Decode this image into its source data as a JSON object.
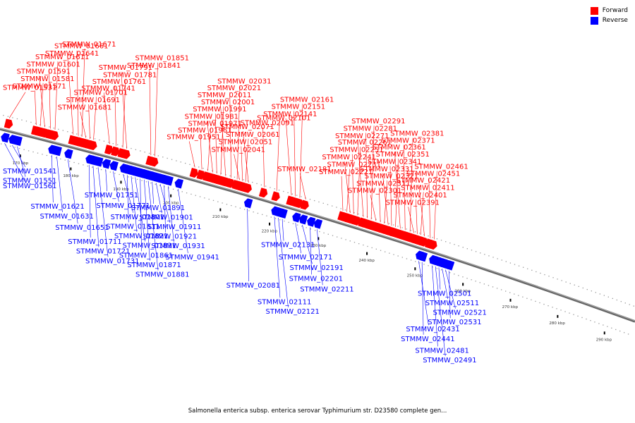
{
  "title": "Salmonella enterica subsp. enterica serovar Typhimurium str. D23580 complete gen...",
  "legend": [
    {
      "label": "Forward",
      "color": "#ff0000"
    },
    {
      "label": "Reverse",
      "color": "#0000ff"
    }
  ],
  "backbone": {
    "start_kbp": 165,
    "end_kbp": 295
  },
  "scale_ticks": [
    {
      "kbp": 170,
      "label": "170 kbp"
    },
    {
      "kbp": 180,
      "label": "180 kbp"
    },
    {
      "kbp": 190,
      "label": "190 kbp"
    },
    {
      "kbp": 200,
      "label": "200 kbp"
    },
    {
      "kbp": 210,
      "label": "210 kbp"
    },
    {
      "kbp": 220,
      "label": "220 kbp"
    },
    {
      "kbp": 230,
      "label": "230 kbp"
    },
    {
      "kbp": 240,
      "label": "240 kbp"
    },
    {
      "kbp": 250,
      "label": "250 kbp"
    },
    {
      "kbp": 260,
      "label": "260 kbp"
    },
    {
      "kbp": 270,
      "label": "270 kbp"
    },
    {
      "kbp": 280,
      "label": "280 kbp"
    },
    {
      "kbp": 290,
      "label": "290 kbp"
    }
  ],
  "forward_genes": [
    {
      "id": "STMMW_01531",
      "kbp": 166.2
    },
    {
      "id": "STMMW_01571",
      "kbp": 171.5
    },
    {
      "id": "STMMW_01581",
      "kbp": 172.3
    },
    {
      "id": "STMMW_01591",
      "kbp": 173.2
    },
    {
      "id": "STMMW_01601",
      "kbp": 174.3
    },
    {
      "id": "STMMW_01611",
      "kbp": 175.2
    },
    {
      "id": "STMMW_01641",
      "kbp": 178.8
    },
    {
      "id": "STMMW_01661",
      "kbp": 179.8
    },
    {
      "id": "STMMW_01671",
      "kbp": 180.5
    },
    {
      "id": "STMMW_01681",
      "kbp": 181.3
    },
    {
      "id": "STMMW_01691",
      "kbp": 182.1
    },
    {
      "id": "STMMW_01701",
      "kbp": 182.8
    },
    {
      "id": "STMMW_01741",
      "kbp": 186.0
    },
    {
      "id": "STMMW_01761",
      "kbp": 187.3
    },
    {
      "id": "STMMW_01781",
      "kbp": 188.6
    },
    {
      "id": "STMMW_01791",
      "kbp": 189.4
    },
    {
      "id": "STMMW_01841",
      "kbp": 194.2
    },
    {
      "id": "STMMW_01851",
      "kbp": 195.0
    },
    {
      "id": "STMMW_01951",
      "kbp": 203.0
    },
    {
      "id": "STMMW_01961",
      "kbp": 204.4
    },
    {
      "id": "STMMW_01971",
      "kbp": 205.6
    },
    {
      "id": "STMMW_01981",
      "kbp": 206.6
    },
    {
      "id": "STMMW_01991",
      "kbp": 207.4
    },
    {
      "id": "STMMW_02001",
      "kbp": 208.2
    },
    {
      "id": "STMMW_02011",
      "kbp": 209.2
    },
    {
      "id": "STMMW_02021",
      "kbp": 210.3
    },
    {
      "id": "STMMW_02031",
      "kbp": 211.5
    },
    {
      "id": "STMMW_02041",
      "kbp": 212.0
    },
    {
      "id": "STMMW_02051",
      "kbp": 212.6
    },
    {
      "id": "STMMW_02061",
      "kbp": 213.2
    },
    {
      "id": "STMMW_02071",
      "kbp": 213.8
    },
    {
      "id": "STMMW_02091",
      "kbp": 217.0
    },
    {
      "id": "STMMW_02101",
      "kbp": 219.5
    },
    {
      "id": "STMMW_02141",
      "kbp": 222.5
    },
    {
      "id": "STMMW_02151",
      "kbp": 223.3
    },
    {
      "id": "STMMW_02161",
      "kbp": 224.2
    },
    {
      "id": "STMMW_02181",
      "kbp": 225.4
    },
    {
      "id": "STMMW_02221",
      "kbp": 233.0
    },
    {
      "id": "STMMW_02231",
      "kbp": 233.8
    },
    {
      "id": "STMMW_02241",
      "kbp": 234.5
    },
    {
      "id": "STMMW_02251",
      "kbp": 235.2
    },
    {
      "id": "STMMW_02261",
      "kbp": 236.0
    },
    {
      "id": "STMMW_02271",
      "kbp": 237.2
    },
    {
      "id": "STMMW_02281",
      "kbp": 238.0
    },
    {
      "id": "STMMW_02291",
      "kbp": 238.8
    },
    {
      "id": "STMMW_02301",
      "kbp": 239.8
    },
    {
      "id": "STMMW_02311",
      "kbp": 240.7
    },
    {
      "id": "STMMW_02321",
      "kbp": 241.5
    },
    {
      "id": "STMMW_02331",
      "kbp": 242.3
    },
    {
      "id": "STMMW_02341",
      "kbp": 243.0
    },
    {
      "id": "STMMW_02351",
      "kbp": 243.8
    },
    {
      "id": "STMMW_02361",
      "kbp": 244.8
    },
    {
      "id": "STMMW_02371",
      "kbp": 245.8
    },
    {
      "id": "STMMW_02381",
      "kbp": 246.8
    },
    {
      "id": "STMMW_02391",
      "kbp": 247.6
    },
    {
      "id": "STMMW_02401",
      "kbp": 248.3
    },
    {
      "id": "STMMW_02411",
      "kbp": 249.0
    },
    {
      "id": "STMMW_02421",
      "kbp": 249.8
    },
    {
      "id": "STMMW_02451",
      "kbp": 251.0
    },
    {
      "id": "STMMW_02461",
      "kbp": 251.8
    }
  ],
  "reverse_genes": [
    {
      "id": "STMMW_01541",
      "kbp": 168.0
    },
    {
      "id": "STMMW_01551",
      "kbp": 169.0
    },
    {
      "id": "STMMW_01561",
      "kbp": 166.5
    },
    {
      "id": "STMMW_01621",
      "kbp": 175.8
    },
    {
      "id": "STMMW_01631",
      "kbp": 176.8
    },
    {
      "id": "STMMW_01651",
      "kbp": 179.0
    },
    {
      "id": "STMMW_01711",
      "kbp": 183.2
    },
    {
      "id": "STMMW_01721",
      "kbp": 184.0
    },
    {
      "id": "STMMW_01731",
      "kbp": 185.0
    },
    {
      "id": "STMMW_01751",
      "kbp": 186.5
    },
    {
      "id": "STMMW_01771",
      "kbp": 188.0
    },
    {
      "id": "STMMW_01801",
      "kbp": 190.0
    },
    {
      "id": "STMMW_01811",
      "kbp": 190.8
    },
    {
      "id": "STMMW_01821",
      "kbp": 191.6
    },
    {
      "id": "STMMW_01831",
      "kbp": 192.4
    },
    {
      "id": "STMMW_01861",
      "kbp": 193.4
    },
    {
      "id": "STMMW_01871",
      "kbp": 194.2
    },
    {
      "id": "STMMW_01881",
      "kbp": 195.0
    },
    {
      "id": "STMMW_01891",
      "kbp": 195.8
    },
    {
      "id": "STMMW_01901",
      "kbp": 196.6
    },
    {
      "id": "STMMW_01911",
      "kbp": 197.4
    },
    {
      "id": "STMMW_01921",
      "kbp": 198.2
    },
    {
      "id": "STMMW_01931",
      "kbp": 199.0
    },
    {
      "id": "STMMW_01941",
      "kbp": 201.0
    },
    {
      "id": "STMMW_02081",
      "kbp": 215.0
    },
    {
      "id": "STMMW_02111",
      "kbp": 220.5
    },
    {
      "id": "STMMW_02121",
      "kbp": 221.3
    },
    {
      "id": "STMMW_02131",
      "kbp": 222.1
    },
    {
      "id": "STMMW_02171",
      "kbp": 224.8
    },
    {
      "id": "STMMW_02191",
      "kbp": 226.2
    },
    {
      "id": "STMMW_02201",
      "kbp": 227.8
    },
    {
      "id": "STMMW_02211",
      "kbp": 229.2
    },
    {
      "id": "STMMW_02431",
      "kbp": 250.2
    },
    {
      "id": "STMMW_02441",
      "kbp": 250.9
    },
    {
      "id": "STMMW_02481",
      "kbp": 253.0
    },
    {
      "id": "STMMW_02491",
      "kbp": 253.7
    },
    {
      "id": "STMMW_02501",
      "kbp": 254.4
    },
    {
      "id": "STMMW_02511",
      "kbp": 255.1
    },
    {
      "id": "STMMW_02521",
      "kbp": 255.8
    },
    {
      "id": "STMMW_02531",
      "kbp": 256.5
    }
  ]
}
